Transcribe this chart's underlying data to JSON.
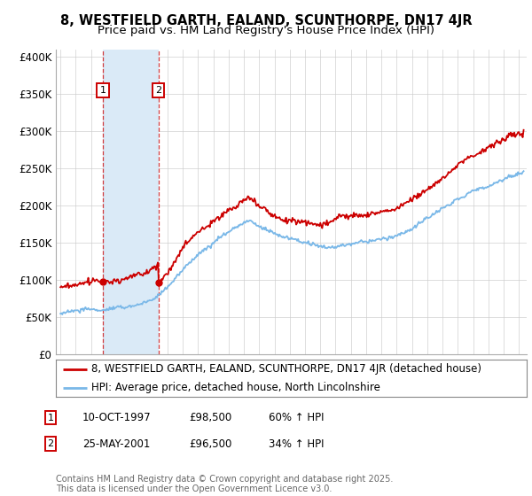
{
  "title": "8, WESTFIELD GARTH, EALAND, SCUNTHORPE, DN17 4JR",
  "subtitle": "Price paid vs. HM Land Registry's House Price Index (HPI)",
  "ylabel_ticks": [
    "£0",
    "£50K",
    "£100K",
    "£150K",
    "£200K",
    "£250K",
    "£300K",
    "£350K",
    "£400K"
  ],
  "ytick_values": [
    0,
    50000,
    100000,
    150000,
    200000,
    250000,
    300000,
    350000,
    400000
  ],
  "ylim": [
    0,
    410000
  ],
  "xlim_start": 1994.7,
  "xlim_end": 2025.5,
  "sale1_date": 1997.78,
  "sale1_price": 98500,
  "sale1_label": "1",
  "sale2_date": 2001.4,
  "sale2_price": 96500,
  "sale2_label": "2",
  "hpi_color": "#7ab8e8",
  "price_color": "#cc0000",
  "shade_color": "#daeaf7",
  "background_color": "#ffffff",
  "grid_color": "#cccccc",
  "legend_label_price": "8, WESTFIELD GARTH, EALAND, SCUNTHORPE, DN17 4JR (detached house)",
  "legend_label_hpi": "HPI: Average price, detached house, North Lincolnshire",
  "footer": "Contains HM Land Registry data © Crown copyright and database right 2025.\nThis data is licensed under the Open Government Licence v3.0.",
  "sale_info": [
    {
      "num": "1",
      "date": "10-OCT-1997",
      "price": "£98,500",
      "pct": "60% ↑ HPI"
    },
    {
      "num": "2",
      "date": "25-MAY-2001",
      "price": "£96,500",
      "pct": "34% ↑ HPI"
    }
  ],
  "title_fontsize": 10.5,
  "subtitle_fontsize": 9.5,
  "tick_fontsize": 8.5,
  "legend_fontsize": 8.5,
  "footer_fontsize": 7
}
